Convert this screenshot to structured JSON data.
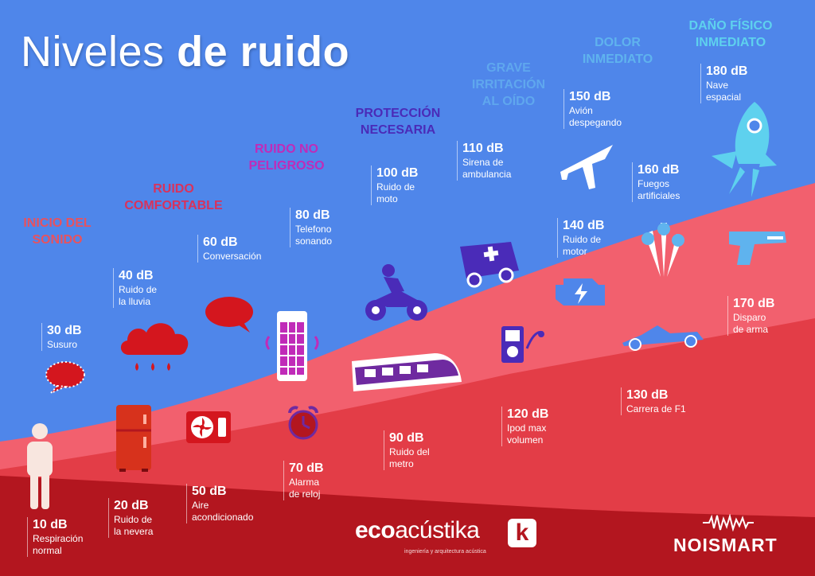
{
  "title": {
    "light": "Niveles",
    "bold": "de ruido"
  },
  "colors": {
    "sky": "#4f86ea",
    "light_band": "#f2606e",
    "mid_band": "#e33d47",
    "dark_band": "#b3161f"
  },
  "categories": [
    {
      "id": "inicio",
      "label": "INICIO DEL\nSONIDO",
      "color": "#e8525e"
    },
    {
      "id": "comfort",
      "label": "RUIDO\nCOMFORTABLE",
      "color": "#d8325c"
    },
    {
      "id": "nopel",
      "label": "RUIDO NO\nPELIGROSO",
      "color": "#c02bb8"
    },
    {
      "id": "prot",
      "label": "PROTECCIÓN\nNECESARIA",
      "color": "#4a2bb8"
    },
    {
      "id": "grave",
      "label": "GRAVE\nIRRITACIÓN\nAL OÍDO",
      "color": "#5fa7ee"
    },
    {
      "id": "dolor",
      "label": "DOLOR\nINMEDIATO",
      "color": "#5fb3ee"
    },
    {
      "id": "dano",
      "label": "DAÑO FÍSICO\nINMEDIATO",
      "color": "#5ed1ee"
    }
  ],
  "levels": [
    {
      "id": "l10",
      "db": "10 dB",
      "desc": "Respiración\nnormal",
      "icon": "person-icon"
    },
    {
      "id": "l20",
      "db": "20 dB",
      "desc": "Ruido de\nla nevera",
      "icon": "fridge-icon"
    },
    {
      "id": "l30",
      "db": "30 dB",
      "desc": "Susuro",
      "icon": "whisper-bubble-icon"
    },
    {
      "id": "l40",
      "db": "40 dB",
      "desc": "Ruido de\nla lluvia",
      "icon": "rain-cloud-icon"
    },
    {
      "id": "l50",
      "db": "50 dB",
      "desc": "Aire\nacondicionado",
      "icon": "air-conditioner-icon"
    },
    {
      "id": "l60",
      "db": "60 dB",
      "desc": "Conversación",
      "icon": "speech-bubble-icon"
    },
    {
      "id": "l70",
      "db": "70 dB",
      "desc": "Alarma\nde reloj",
      "icon": "alarm-clock-icon"
    },
    {
      "id": "l80",
      "db": "80 dB",
      "desc": "Telefono\nsonando",
      "icon": "phone-booth-icon"
    },
    {
      "id": "l90",
      "db": "90 dB",
      "desc": "Ruido del\nmetro",
      "icon": "train-icon"
    },
    {
      "id": "l100",
      "db": "100 dB",
      "desc": "Ruido de\nmoto",
      "icon": "motorcycle-icon"
    },
    {
      "id": "l110",
      "db": "110 dB",
      "desc": "Sirena de\nambulancia",
      "icon": "ambulance-icon"
    },
    {
      "id": "l120",
      "db": "120 dB",
      "desc": "Ipod max\nvolumen",
      "icon": "music-player-icon"
    },
    {
      "id": "l130",
      "db": "130 dB",
      "desc": "Carrera de F1",
      "icon": "race-car-icon"
    },
    {
      "id": "l140",
      "db": "140 dB",
      "desc": "Ruido de\nmotor",
      "icon": "engine-icon"
    },
    {
      "id": "l150",
      "db": "150 dB",
      "desc": "Avión\ndespegando",
      "icon": "airplane-icon"
    },
    {
      "id": "l160",
      "db": "160 dB",
      "desc": "Fuegos\nartificiales",
      "icon": "fireworks-icon"
    },
    {
      "id": "l170",
      "db": "170 dB",
      "desc": "Disparo\nde arma",
      "icon": "gun-icon"
    },
    {
      "id": "l180",
      "db": "180 dB",
      "desc": "Nave\nespacial",
      "icon": "rocket-icon"
    }
  ],
  "brands": {
    "ecoacustika": {
      "name_bold": "eco",
      "name_light": "acústika",
      "k": "k",
      "tagline": "ingeniería y arquitectura acústica"
    },
    "noismart": {
      "name": "NOISMART"
    }
  }
}
